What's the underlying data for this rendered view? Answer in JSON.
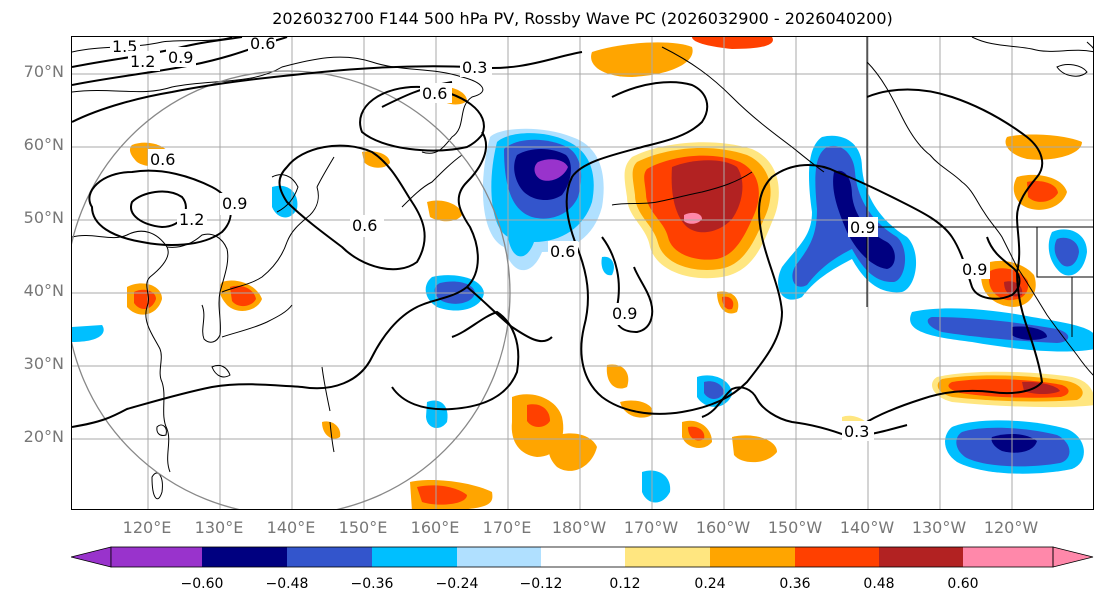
{
  "title": "2026032700 F144 500 hPa PV, Rossby Wave PC (2026032900 - 2026040200)",
  "map": {
    "lat_labels": [
      "70°N",
      "60°N",
      "50°N",
      "40°N",
      "30°N",
      "20°N"
    ],
    "lon_labels": [
      "120°E",
      "130°E",
      "140°E",
      "150°E",
      "160°E",
      "170°E",
      "180°W",
      "170°W",
      "160°W",
      "150°W",
      "140°W",
      "130°W",
      "120°W"
    ],
    "contour_labels": [
      "1.5",
      "1.2",
      "0.9",
      "0.6",
      "0.3",
      "0.6",
      "0.6",
      "1.2",
      "0.9",
      "0.6",
      "0.6",
      "0.9",
      "0.9",
      "0.9",
      "0.3"
    ],
    "colors": {
      "land_line": "#000000",
      "grid": "#a9a9a9",
      "contour": "#000000",
      "circle": "#888888"
    }
  },
  "colorbar": {
    "ticks": [
      "−0.60",
      "−0.48",
      "−0.36",
      "−0.24",
      "−0.12",
      "0.12",
      "0.24",
      "0.36",
      "0.48",
      "0.60"
    ],
    "colors": [
      "#9933cc",
      "#000080",
      "#3355cc",
      "#00bfff",
      "#b0e0ff",
      "#ffffff",
      "#ffe680",
      "#ffa500",
      "#ff4000",
      "#b22222",
      "#ff88aa"
    ]
  }
}
